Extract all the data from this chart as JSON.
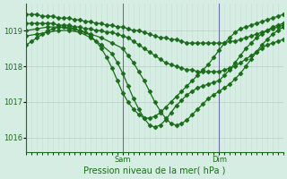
{
  "title": "Pression niveau de la mer( hPa )",
  "ylabel_ticks": [
    1016,
    1017,
    1018,
    1019
  ],
  "ylim": [
    1015.6,
    1019.75
  ],
  "xlim": [
    0,
    48
  ],
  "background_color": "#d6ede3",
  "plot_color": "#1a6b1a",
  "grid_color_v": "#c8ddd4",
  "grid_color_h": "#b8cdc4",
  "vline_color": "#7070a0",
  "sam_x": 18,
  "dim_x": 36,
  "series": [
    {
      "x": [
        0,
        1,
        2,
        3,
        4,
        5,
        6,
        7,
        8,
        9,
        10,
        11,
        12,
        13,
        14,
        15,
        16,
        17,
        18,
        19,
        20,
        21,
        22,
        23,
        24,
        25,
        26,
        27,
        28,
        29,
        30,
        31,
        32,
        33,
        34,
        35,
        36,
        37,
        38,
        39,
        40,
        41,
        42,
        43,
        44,
        45,
        46,
        47,
        48
      ],
      "y": [
        1019.45,
        1019.45,
        1019.45,
        1019.4,
        1019.4,
        1019.4,
        1019.35,
        1019.35,
        1019.35,
        1019.3,
        1019.3,
        1019.25,
        1019.25,
        1019.2,
        1019.2,
        1019.15,
        1019.15,
        1019.1,
        1019.1,
        1019.05,
        1019.0,
        1019.0,
        1018.95,
        1018.9,
        1018.85,
        1018.8,
        1018.8,
        1018.75,
        1018.75,
        1018.7,
        1018.65,
        1018.65,
        1018.65,
        1018.65,
        1018.65,
        1018.65,
        1018.65,
        1018.65,
        1018.7,
        1018.7,
        1018.75,
        1018.8,
        1018.85,
        1018.9,
        1018.95,
        1019.0,
        1019.05,
        1019.1,
        1019.15
      ]
    },
    {
      "x": [
        0,
        1,
        2,
        3,
        4,
        5,
        6,
        7,
        8,
        9,
        10,
        11,
        12,
        13,
        14,
        15,
        16,
        17,
        18,
        19,
        20,
        21,
        22,
        23,
        24,
        25,
        26,
        27,
        28,
        29,
        30,
        31,
        32,
        33,
        34,
        35,
        36,
        37,
        38,
        39,
        40,
        41,
        42,
        43,
        44,
        45,
        46,
        47,
        48
      ],
      "y": [
        1019.2,
        1019.2,
        1019.2,
        1019.2,
        1019.2,
        1019.2,
        1019.15,
        1019.15,
        1019.15,
        1019.1,
        1019.1,
        1019.05,
        1019.05,
        1019.0,
        1019.0,
        1018.95,
        1018.95,
        1018.9,
        1018.85,
        1018.8,
        1018.7,
        1018.6,
        1018.5,
        1018.4,
        1018.3,
        1018.2,
        1018.1,
        1018.05,
        1018.0,
        1017.95,
        1017.9,
        1017.9,
        1017.85,
        1017.85,
        1017.85,
        1017.85,
        1017.85,
        1017.9,
        1017.95,
        1018.0,
        1018.1,
        1018.2,
        1018.3,
        1018.4,
        1018.5,
        1018.6,
        1018.65,
        1018.7,
        1018.75
      ]
    },
    {
      "x": [
        0,
        2,
        4,
        6,
        8,
        10,
        12,
        14,
        16,
        18,
        19,
        20,
        21,
        22,
        23,
        24,
        25,
        26,
        27,
        28,
        29,
        30,
        31,
        32,
        33,
        34,
        35,
        36,
        37,
        38,
        39,
        40,
        41,
        42,
        43,
        44,
        45,
        46,
        47,
        48
      ],
      "y": [
        1019.0,
        1019.05,
        1019.1,
        1019.1,
        1019.05,
        1019.0,
        1018.9,
        1018.8,
        1018.65,
        1018.5,
        1018.3,
        1018.1,
        1017.85,
        1017.6,
        1017.3,
        1017.0,
        1016.75,
        1016.55,
        1016.4,
        1016.35,
        1016.4,
        1016.5,
        1016.65,
        1016.8,
        1016.95,
        1017.1,
        1017.2,
        1017.3,
        1017.4,
        1017.5,
        1017.65,
        1017.8,
        1018.0,
        1018.2,
        1018.4,
        1018.6,
        1018.75,
        1018.9,
        1019.0,
        1019.1
      ]
    },
    {
      "x": [
        0,
        2,
        4,
        6,
        8,
        10,
        12,
        14,
        16,
        17,
        18,
        19,
        20,
        21,
        22,
        23,
        24,
        25,
        26,
        27,
        28,
        29,
        30,
        31,
        32,
        33,
        34,
        35,
        36,
        37,
        38,
        39,
        40,
        41,
        42,
        43,
        44,
        45,
        46,
        47,
        48
      ],
      "y": [
        1018.85,
        1018.9,
        1018.95,
        1019.0,
        1019.0,
        1018.95,
        1018.8,
        1018.6,
        1018.35,
        1018.1,
        1017.8,
        1017.45,
        1017.1,
        1016.8,
        1016.55,
        1016.35,
        1016.3,
        1016.35,
        1016.5,
        1016.7,
        1016.9,
        1017.05,
        1017.2,
        1017.3,
        1017.4,
        1017.45,
        1017.5,
        1017.55,
        1017.6,
        1017.75,
        1017.9,
        1018.1,
        1018.3,
        1018.5,
        1018.65,
        1018.8,
        1018.9,
        1019.0,
        1019.1,
        1019.15,
        1019.2
      ]
    },
    {
      "x": [
        0,
        1,
        2,
        3,
        4,
        5,
        6,
        7,
        8,
        9,
        10,
        11,
        12,
        13,
        14,
        15,
        16,
        17,
        18,
        19,
        20,
        21,
        22,
        23,
        24,
        25,
        26,
        27,
        28,
        29,
        30,
        31,
        32,
        33,
        34,
        35,
        36,
        37,
        38,
        39,
        40,
        41,
        42,
        43,
        44,
        45,
        46,
        47,
        48
      ],
      "y": [
        1018.6,
        1018.7,
        1018.8,
        1018.9,
        1019.0,
        1019.05,
        1019.1,
        1019.1,
        1019.1,
        1019.05,
        1019.0,
        1018.95,
        1018.85,
        1018.7,
        1018.5,
        1018.25,
        1017.95,
        1017.6,
        1017.25,
        1017.0,
        1016.8,
        1016.65,
        1016.55,
        1016.55,
        1016.6,
        1016.7,
        1016.85,
        1017.0,
        1017.15,
        1017.3,
        1017.45,
        1017.6,
        1017.75,
        1017.9,
        1018.05,
        1018.25,
        1018.45,
        1018.65,
        1018.8,
        1018.95,
        1019.05,
        1019.1,
        1019.15,
        1019.2,
        1019.25,
        1019.3,
        1019.35,
        1019.4,
        1019.45
      ]
    }
  ],
  "marker": "D",
  "markersize": 2.5,
  "linewidth": 0.9,
  "n_vgrid": 49,
  "n_hgrid": 4
}
